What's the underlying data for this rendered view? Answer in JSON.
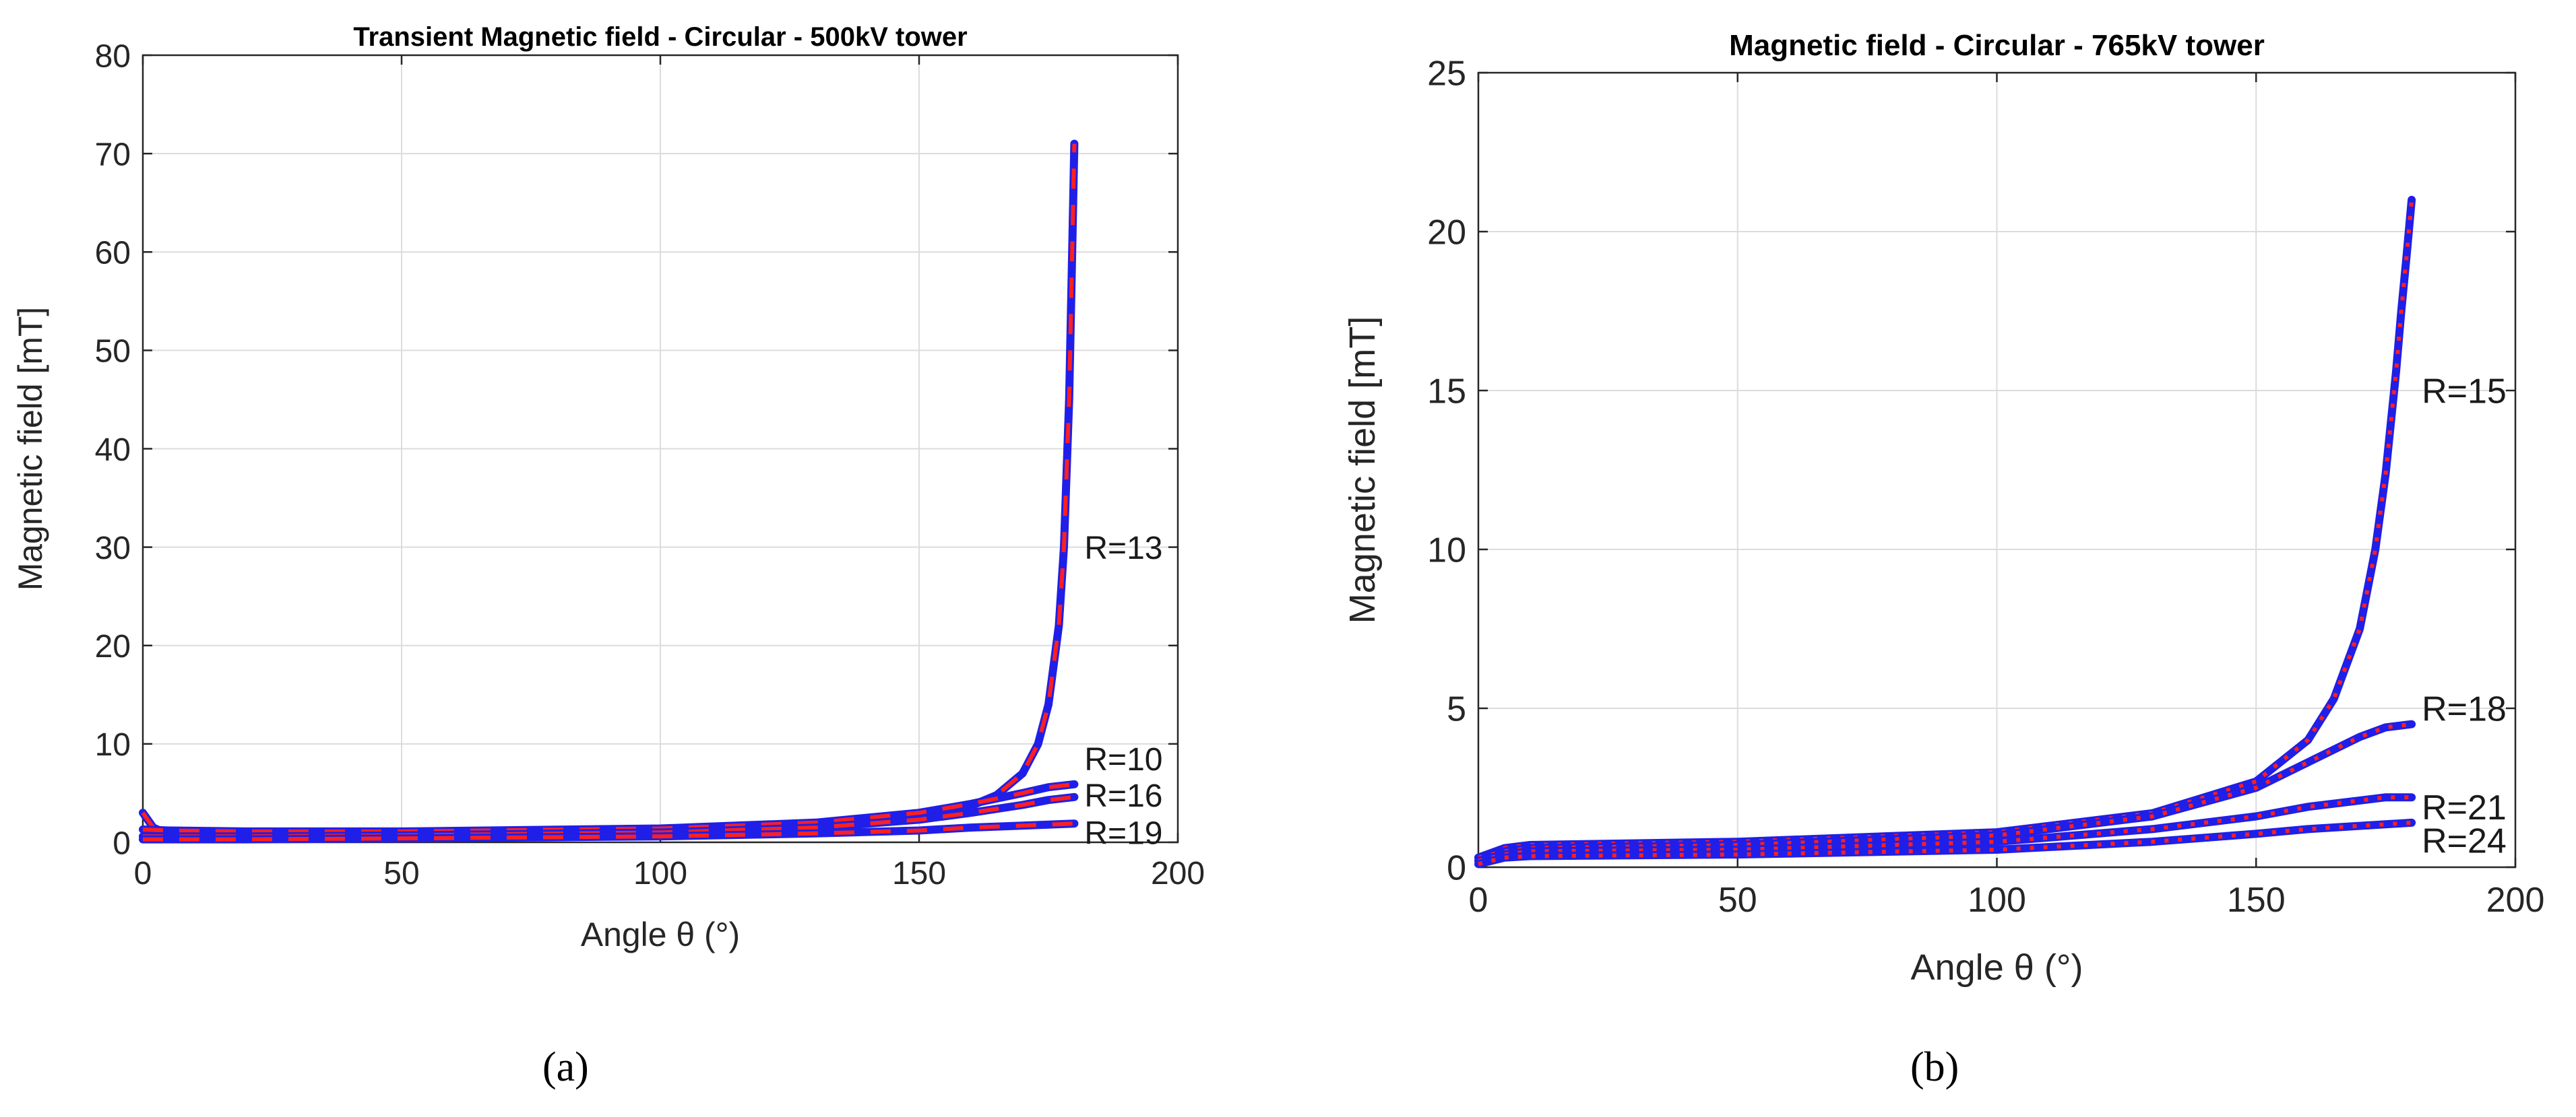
{
  "chart_data": [
    {
      "type": "line",
      "panel_label": "(a)",
      "title": "Transient Magnetic field - Circular - 500kV tower",
      "xlabel": "Angle θ (°)",
      "ylabel": "Magnetic field [mT]",
      "xlim": [
        0,
        200
      ],
      "ylim": [
        0,
        80
      ],
      "xticks": [
        0,
        50,
        100,
        150,
        200
      ],
      "yticks": [
        0,
        10,
        20,
        30,
        40,
        50,
        60,
        70,
        80
      ],
      "grid": true,
      "colors": {
        "computed": "#1f1fe8",
        "reference": "#ff1f1f"
      },
      "series": [
        {
          "name": "R=13",
          "label_at": [
            180,
            30
          ],
          "x": [
            0,
            2,
            5,
            20,
            50,
            100,
            130,
            150,
            160,
            165,
            170,
            173,
            175,
            177,
            178,
            179,
            179.5,
            180
          ],
          "y": [
            3.0,
            1.5,
            0.8,
            0.5,
            0.7,
            1.2,
            1.8,
            2.6,
            3.7,
            4.8,
            7.0,
            10.0,
            14.0,
            22.0,
            30.0,
            45.0,
            58.0,
            71.0
          ]
        },
        {
          "name": "R=10",
          "label_at": [
            180,
            8.5
          ],
          "x": [
            0,
            5,
            20,
            50,
            100,
            130,
            150,
            160,
            170,
            175,
            180
          ],
          "y": [
            1.3,
            1.2,
            1.1,
            1.1,
            1.4,
            2.0,
            3.0,
            3.9,
            5.0,
            5.6,
            5.9
          ]
        },
        {
          "name": "R=16",
          "label_at": [
            180,
            4.8
          ],
          "x": [
            0,
            5,
            20,
            50,
            100,
            130,
            150,
            160,
            170,
            175,
            180
          ],
          "y": [
            0.6,
            0.6,
            0.6,
            0.7,
            1.0,
            1.5,
            2.3,
            3.0,
            3.8,
            4.3,
            4.6
          ]
        },
        {
          "name": "R=19",
          "label_at": [
            180,
            1.0
          ],
          "x": [
            0,
            5,
            20,
            50,
            100,
            130,
            150,
            160,
            170,
            175,
            180
          ],
          "y": [
            0.3,
            0.3,
            0.3,
            0.4,
            0.6,
            0.9,
            1.2,
            1.5,
            1.7,
            1.8,
            1.9
          ]
        }
      ]
    },
    {
      "type": "line",
      "panel_label": "(b)",
      "title": "Magnetic field - Circular - 765kV tower",
      "xlabel": "Angle θ (°)",
      "ylabel": "Magnetic field [mT]",
      "xlim": [
        0,
        200
      ],
      "ylim": [
        0,
        25
      ],
      "xticks": [
        0,
        50,
        100,
        150,
        200
      ],
      "yticks": [
        0,
        5,
        10,
        15,
        20,
        25
      ],
      "grid": true,
      "colors": {
        "computed": "#1f1fe8",
        "reference": "#ff1f1f"
      },
      "series": [
        {
          "name": "R=15",
          "label_at": [
            180,
            15
          ],
          "x": [
            0,
            5,
            10,
            50,
            100,
            130,
            150,
            160,
            165,
            170,
            173,
            175,
            177,
            178,
            179,
            180
          ],
          "y": [
            0.3,
            0.6,
            0.7,
            0.8,
            1.1,
            1.7,
            2.7,
            4.0,
            5.3,
            7.5,
            10.0,
            12.4,
            15.6,
            17.5,
            19.2,
            21.0
          ]
        },
        {
          "name": "R=18",
          "label_at": [
            180,
            5
          ],
          "x": [
            0,
            5,
            10,
            50,
            100,
            130,
            150,
            160,
            170,
            175,
            180
          ],
          "y": [
            0.3,
            0.5,
            0.6,
            0.7,
            1.0,
            1.6,
            2.5,
            3.3,
            4.1,
            4.4,
            4.5
          ]
        },
        {
          "name": "R=21",
          "label_at": [
            180,
            1.9
          ],
          "x": [
            0,
            5,
            10,
            50,
            100,
            130,
            150,
            160,
            170,
            175,
            180
          ],
          "y": [
            0.2,
            0.4,
            0.5,
            0.55,
            0.8,
            1.2,
            1.6,
            1.9,
            2.1,
            2.2,
            2.2
          ]
        },
        {
          "name": "R=24",
          "label_at": [
            180,
            0.85
          ],
          "x": [
            0,
            5,
            10,
            50,
            100,
            130,
            150,
            160,
            170,
            175,
            180
          ],
          "y": [
            0.1,
            0.3,
            0.35,
            0.4,
            0.55,
            0.8,
            1.05,
            1.2,
            1.3,
            1.35,
            1.4
          ]
        }
      ]
    }
  ]
}
